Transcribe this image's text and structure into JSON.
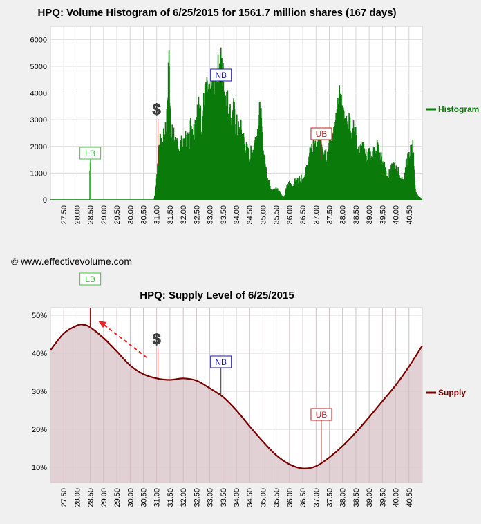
{
  "copyright": "© www.effectivevolume.com",
  "colors": {
    "histogram": "#0a7a0a",
    "supply_line": "#7a0000",
    "supply_fill": "#dcc8cc",
    "lb": "#33cc33",
    "nb": "#1a1aa0",
    "ub": "#cc1a1a",
    "arrow": "#ee2222",
    "dollar": "#333333"
  },
  "chart_data": [
    {
      "type": "bar",
      "title": "HPQ: Volume Histogram of 6/25/2015 for 1561.7 million shares (167 days)",
      "legend": "Histogram",
      "legend_position": "right",
      "xlim": [
        27.0,
        41.0
      ],
      "ylim": [
        0,
        6500
      ],
      "x_ticks": [
        "27.50",
        "28.00",
        "28.50",
        "29.00",
        "29.50",
        "30.00",
        "30.50",
        "31.00",
        "31.50",
        "32.00",
        "32.50",
        "33.00",
        "33.50",
        "34.00",
        "34.50",
        "35.00",
        "35.50",
        "36.00",
        "36.50",
        "37.00",
        "37.50",
        "38.00",
        "38.50",
        "39.00",
        "39.50",
        "40.00",
        "40.50"
      ],
      "y_ticks": [
        "0",
        "1000",
        "2000",
        "3000",
        "4000",
        "5000",
        "6000"
      ],
      "grid": true,
      "markers": [
        {
          "label": "LB",
          "x": 28.5,
          "kind": "lb"
        },
        {
          "label": "$",
          "x": 31.05,
          "kind": "dollar"
        },
        {
          "label": "NB",
          "x": 33.42,
          "kind": "nb"
        },
        {
          "label": "UB",
          "x": 37.2,
          "kind": "ub"
        }
      ],
      "profile": [
        [
          27.0,
          0
        ],
        [
          28.48,
          0
        ],
        [
          28.49,
          1450
        ],
        [
          28.51,
          1450
        ],
        [
          28.52,
          0
        ],
        [
          30.9,
          0
        ],
        [
          30.95,
          300
        ],
        [
          31.0,
          800
        ],
        [
          31.05,
          1800
        ],
        [
          31.1,
          2300
        ],
        [
          31.2,
          2000
        ],
        [
          31.3,
          2600
        ],
        [
          31.4,
          3200
        ],
        [
          31.45,
          5800
        ],
        [
          31.5,
          4300
        ],
        [
          31.55,
          2100
        ],
        [
          31.6,
          2700
        ],
        [
          31.7,
          2300
        ],
        [
          31.8,
          1900
        ],
        [
          31.9,
          2200
        ],
        [
          32.0,
          2000
        ],
        [
          32.1,
          2400
        ],
        [
          32.2,
          2300
        ],
        [
          32.3,
          3000
        ],
        [
          32.4,
          2700
        ],
        [
          32.5,
          3400
        ],
        [
          32.6,
          3500
        ],
        [
          32.7,
          3000
        ],
        [
          32.8,
          3900
        ],
        [
          32.9,
          4100
        ],
        [
          33.0,
          3800
        ],
        [
          33.1,
          4500
        ],
        [
          33.2,
          4300
        ],
        [
          33.3,
          4800
        ],
        [
          33.35,
          5000
        ],
        [
          33.4,
          5300
        ],
        [
          33.5,
          4700
        ],
        [
          33.6,
          4100
        ],
        [
          33.7,
          3600
        ],
        [
          33.8,
          3200
        ],
        [
          33.9,
          3400
        ],
        [
          34.0,
          2900
        ],
        [
          34.1,
          2600
        ],
        [
          34.2,
          2700
        ],
        [
          34.3,
          2200
        ],
        [
          34.4,
          1900
        ],
        [
          34.5,
          1700
        ],
        [
          34.6,
          1900
        ],
        [
          34.7,
          2300
        ],
        [
          34.8,
          2700
        ],
        [
          34.9,
          3500
        ],
        [
          35.0,
          2000
        ],
        [
          35.1,
          1300
        ],
        [
          35.2,
          800
        ],
        [
          35.3,
          500
        ],
        [
          35.4,
          350
        ],
        [
          35.5,
          450
        ],
        [
          35.6,
          350
        ],
        [
          35.7,
          200
        ],
        [
          35.8,
          100
        ],
        [
          35.9,
          500
        ],
        [
          36.0,
          650
        ],
        [
          36.1,
          500
        ],
        [
          36.2,
          700
        ],
        [
          36.3,
          750
        ],
        [
          36.4,
          850
        ],
        [
          36.5,
          800
        ],
        [
          36.6,
          1000
        ],
        [
          36.7,
          1400
        ],
        [
          36.8,
          1900
        ],
        [
          36.9,
          2100
        ],
        [
          37.0,
          1900
        ],
        [
          37.1,
          2200
        ],
        [
          37.2,
          2300
        ],
        [
          37.3,
          2100
        ],
        [
          37.4,
          1800
        ],
        [
          37.5,
          2000
        ],
        [
          37.6,
          2400
        ],
        [
          37.7,
          2700
        ],
        [
          37.8,
          3200
        ],
        [
          37.9,
          3900
        ],
        [
          38.0,
          3300
        ],
        [
          38.1,
          3000
        ],
        [
          38.2,
          2900
        ],
        [
          38.3,
          3000
        ],
        [
          38.4,
          2700
        ],
        [
          38.5,
          2400
        ],
        [
          38.6,
          1800
        ],
        [
          38.7,
          2000
        ],
        [
          38.8,
          1900
        ],
        [
          38.9,
          1700
        ],
        [
          39.0,
          1900
        ],
        [
          39.1,
          1500
        ],
        [
          39.2,
          1900
        ],
        [
          39.3,
          2000
        ],
        [
          39.4,
          1700
        ],
        [
          39.5,
          1500
        ],
        [
          39.6,
          1300
        ],
        [
          39.7,
          900
        ],
        [
          39.8,
          1100
        ],
        [
          39.9,
          1300
        ],
        [
          40.0,
          1200
        ],
        [
          40.1,
          1100
        ],
        [
          40.2,
          800
        ],
        [
          40.3,
          700
        ],
        [
          40.4,
          1400
        ],
        [
          40.5,
          1700
        ],
        [
          40.6,
          2000
        ],
        [
          40.65,
          2100
        ],
        [
          40.7,
          800
        ],
        [
          40.75,
          300
        ],
        [
          40.8,
          200
        ],
        [
          40.9,
          100
        ],
        [
          41.0,
          0
        ]
      ]
    },
    {
      "type": "area",
      "title": "HPQ: Supply Level of 6/25/2015",
      "legend": "Supply",
      "legend_position": "right",
      "xlim": [
        27.0,
        41.0
      ],
      "ylim": [
        6,
        52
      ],
      "x_ticks": [
        "27.50",
        "28.00",
        "28.50",
        "29.00",
        "29.50",
        "30.00",
        "30.50",
        "31.00",
        "31.50",
        "32.00",
        "32.50",
        "33.00",
        "33.50",
        "34.00",
        "34.50",
        "35.00",
        "35.50",
        "36.00",
        "36.50",
        "37.00",
        "37.50",
        "38.00",
        "38.50",
        "39.00",
        "39.50",
        "40.00",
        "40.50"
      ],
      "y_ticks": [
        "10%",
        "20%",
        "30%",
        "40%",
        "50%"
      ],
      "grid": true,
      "markers": [
        {
          "label": "LB",
          "x": 28.5,
          "kind": "lb"
        },
        {
          "label": "$",
          "x": 31.05,
          "kind": "dollar"
        },
        {
          "label": "NB",
          "x": 33.42,
          "kind": "nb"
        },
        {
          "label": "UB",
          "x": 37.2,
          "kind": "ub"
        }
      ],
      "x": [
        27.0,
        27.5,
        28.0,
        28.25,
        28.5,
        29.0,
        29.5,
        30.0,
        30.5,
        31.0,
        31.5,
        32.0,
        32.5,
        33.0,
        33.5,
        34.0,
        34.5,
        35.0,
        35.5,
        36.0,
        36.5,
        37.0,
        37.5,
        38.0,
        38.5,
        39.0,
        39.5,
        40.0,
        40.5,
        41.0
      ],
      "y": [
        40.8,
        45.2,
        47.3,
        47.5,
        46.8,
        44.0,
        40.5,
        36.8,
        34.5,
        33.4,
        33.0,
        33.4,
        32.8,
        30.8,
        28.5,
        25.0,
        20.8,
        16.8,
        13.2,
        10.8,
        9.7,
        10.3,
        12.6,
        15.6,
        19.2,
        23.2,
        27.4,
        31.6,
        36.5,
        42.0
      ]
    }
  ]
}
